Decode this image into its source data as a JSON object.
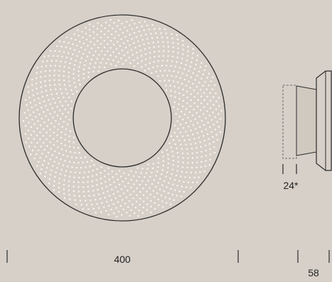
{
  "diagram": {
    "front_view": {
      "width_label": "400",
      "perforation": "fibonacci-dot-pattern"
    },
    "side_view": {
      "bracket_label": "24*",
      "depth_label": "58"
    },
    "colors": {
      "background": "#d6d0c8",
      "disc_fill": "#d6d0c8",
      "outline": "#2b2b2b",
      "dots": "#f7f4ef",
      "dashed": "#6a6a6a"
    }
  }
}
